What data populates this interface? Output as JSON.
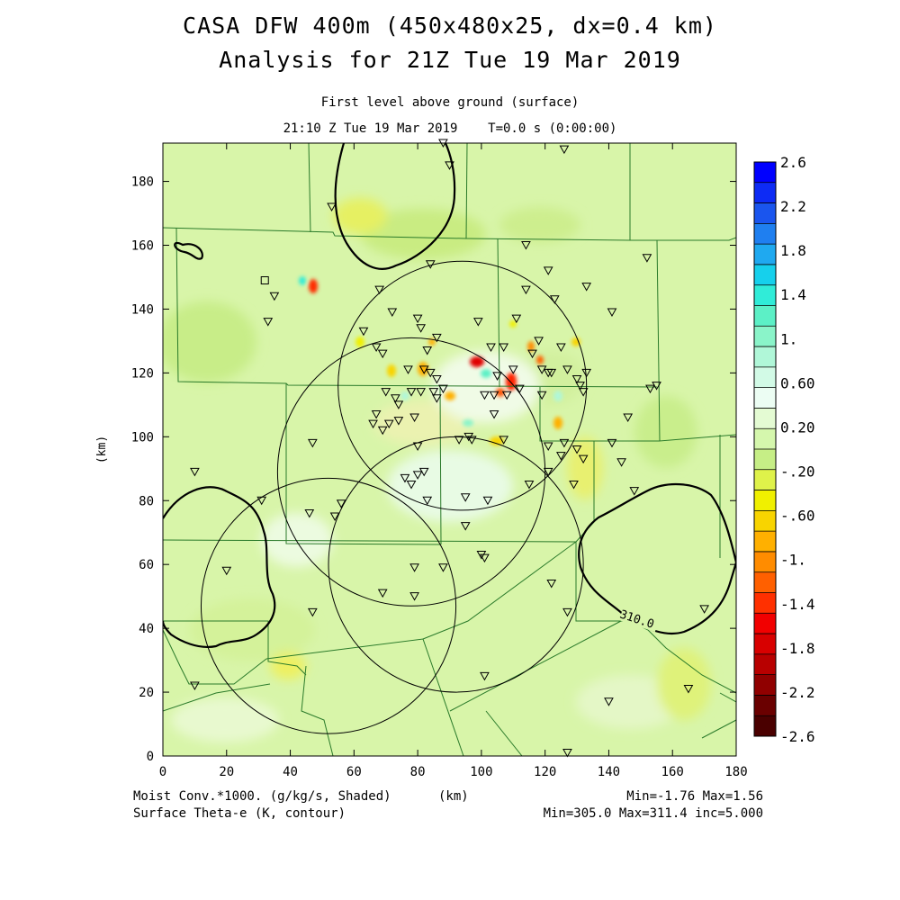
{
  "header": {
    "title_line1": "CASA DFW 400m (450x480x25, dx=0.4 km)",
    "title_line2": "Analysis for 21Z Tue 19 Mar 2019",
    "level": "First level above ground (surface)",
    "time": "21:10 Z Tue 19 Mar 2019    T=0.0 s (0:00:00)"
  },
  "footer": {
    "field_shaded": "Moist Conv.*1000. (g/kg/s, Shaded)",
    "axis_unit": "(km)",
    "shaded_stats": "Min=-1.76 Max=1.56",
    "field_contour": "Surface Theta-e (K, contour)",
    "contour_stats": "Min=305.0 Max=311.4 inc=5.000"
  },
  "chart_data": {
    "type": "heatmap",
    "xlabel": "",
    "ylabel": "(km)",
    "xlim": [
      0,
      180
    ],
    "ylim": [
      0,
      192
    ],
    "x_ticks": [
      0,
      20,
      40,
      60,
      80,
      100,
      120,
      140,
      160,
      180
    ],
    "y_ticks": [
      0,
      20,
      40,
      60,
      80,
      100,
      120,
      140,
      160,
      180
    ],
    "colorbar": {
      "labels": [
        "2.6",
        "2.2",
        "1.8",
        "1.4",
        "1.",
        "0.60",
        "0.20",
        "-.20",
        "-.60",
        "-1.",
        "-1.4",
        "-1.8",
        "-2.2",
        "-2.6"
      ],
      "colors": [
        "#0000ff",
        "#0d2bf5",
        "#1a55ee",
        "#1f7ff0",
        "#1fa9f0",
        "#16d0ec",
        "#30ecd8",
        "#5cf0c6",
        "#8af4c9",
        "#b0f7d8",
        "#d2fae6",
        "#ecfdf3",
        "#e4fbd3",
        "#d5f7ad",
        "#c6ee86",
        "#dff24a",
        "#f0f000",
        "#f8d400",
        "#ffb000",
        "#ff8c00",
        "#ff6000",
        "#ff3000",
        "#f20000",
        "#d80000",
        "#b80000",
        "#900000",
        "#6a0000",
        "#4a0000"
      ]
    },
    "contour_label": "310.0",
    "radar_rings": [
      {
        "cx": 94,
        "cy": 116,
        "r": 39
      },
      {
        "cx": 78,
        "cy": 89,
        "r": 42
      },
      {
        "cx": 52,
        "cy": 47,
        "r": 40
      },
      {
        "cx": 92,
        "cy": 60,
        "r": 40
      }
    ],
    "station_square": {
      "x": 32,
      "y": 149
    },
    "stations": [
      [
        88,
        192
      ],
      [
        126,
        190
      ],
      [
        90,
        185
      ],
      [
        53,
        172
      ],
      [
        152,
        156
      ],
      [
        114,
        160
      ],
      [
        84,
        154
      ],
      [
        121,
        152
      ],
      [
        133,
        147
      ],
      [
        114,
        146
      ],
      [
        68,
        146
      ],
      [
        123,
        143
      ],
      [
        35,
        144
      ],
      [
        141,
        139
      ],
      [
        33,
        136
      ],
      [
        72,
        139
      ],
      [
        80,
        137
      ],
      [
        99,
        136
      ],
      [
        111,
        137
      ],
      [
        81,
        134
      ],
      [
        63,
        133
      ],
      [
        86,
        131
      ],
      [
        118,
        130
      ],
      [
        103,
        128
      ],
      [
        125,
        128
      ],
      [
        67,
        128
      ],
      [
        107,
        128
      ],
      [
        69,
        126
      ],
      [
        116,
        126
      ],
      [
        83,
        127
      ],
      [
        127,
        121
      ],
      [
        133,
        120
      ],
      [
        77,
        121
      ],
      [
        122,
        120
      ],
      [
        82,
        121
      ],
      [
        110,
        121
      ],
      [
        119,
        121
      ],
      [
        121,
        120
      ],
      [
        130,
        118
      ],
      [
        84,
        120
      ],
      [
        86,
        118
      ],
      [
        105,
        119
      ],
      [
        155,
        116
      ],
      [
        78,
        114
      ],
      [
        85,
        114
      ],
      [
        88,
        115
      ],
      [
        70,
        114
      ],
      [
        81,
        114
      ],
      [
        131,
        116
      ],
      [
        73,
        112
      ],
      [
        132,
        114
      ],
      [
        153,
        115
      ],
      [
        104,
        113
      ],
      [
        112,
        115
      ],
      [
        119,
        113
      ],
      [
        108,
        113
      ],
      [
        101,
        113
      ],
      [
        86,
        112
      ],
      [
        74,
        110
      ],
      [
        67,
        107
      ],
      [
        79,
        106
      ],
      [
        71,
        104
      ],
      [
        66,
        104
      ],
      [
        74,
        105
      ],
      [
        69,
        102
      ],
      [
        104,
        107
      ],
      [
        146,
        106
      ],
      [
        126,
        98
      ],
      [
        107,
        99
      ],
      [
        130,
        96
      ],
      [
        47,
        98
      ],
      [
        93,
        99
      ],
      [
        96,
        100
      ],
      [
        121,
        97
      ],
      [
        97,
        99
      ],
      [
        80,
        97
      ],
      [
        141,
        98
      ],
      [
        125,
        94
      ],
      [
        132,
        93
      ],
      [
        144,
        92
      ],
      [
        10,
        89
      ],
      [
        121,
        89
      ],
      [
        82,
        89
      ],
      [
        76,
        87
      ],
      [
        80,
        88
      ],
      [
        78,
        85
      ],
      [
        129,
        85
      ],
      [
        148,
        83
      ],
      [
        95,
        81
      ],
      [
        102,
        80
      ],
      [
        56,
        79
      ],
      [
        46,
        76
      ],
      [
        83,
        80
      ],
      [
        115,
        85
      ],
      [
        31,
        80
      ],
      [
        54,
        75
      ],
      [
        95,
        72
      ],
      [
        100,
        63
      ],
      [
        101,
        62
      ],
      [
        88,
        59
      ],
      [
        79,
        59
      ],
      [
        20,
        58
      ],
      [
        122,
        54
      ],
      [
        69,
        51
      ],
      [
        79,
        50
      ],
      [
        47,
        45
      ],
      [
        127,
        45
      ],
      [
        170,
        46
      ],
      [
        101,
        25
      ],
      [
        165,
        21
      ],
      [
        10,
        22
      ],
      [
        140,
        17
      ],
      [
        127,
        1
      ]
    ]
  }
}
